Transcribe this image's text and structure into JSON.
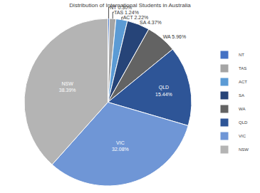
{
  "chart_data": {
    "type": "pie",
    "title": "Distribution of International Students in Australia",
    "categories": [
      "NT",
      "TAS",
      "ACT",
      "SA",
      "WA",
      "QLD",
      "VIC",
      "NSW"
    ],
    "values": [
      0.3,
      1.24,
      2.22,
      4.37,
      5.96,
      15.44,
      32.08,
      38.39
    ],
    "value_labels": [
      "0.30%",
      "1.24%",
      "2.22%",
      "4.37%",
      "5.96%",
      "15.44%",
      "32.08%",
      "38.39%"
    ],
    "colors": [
      "#4472c4",
      "#a5a5a5",
      "#5b9bd5",
      "#264478",
      "#636363",
      "#2e5597",
      "#6f96d6",
      "#b4b4b4"
    ],
    "data_labels": true,
    "legend": "right"
  }
}
